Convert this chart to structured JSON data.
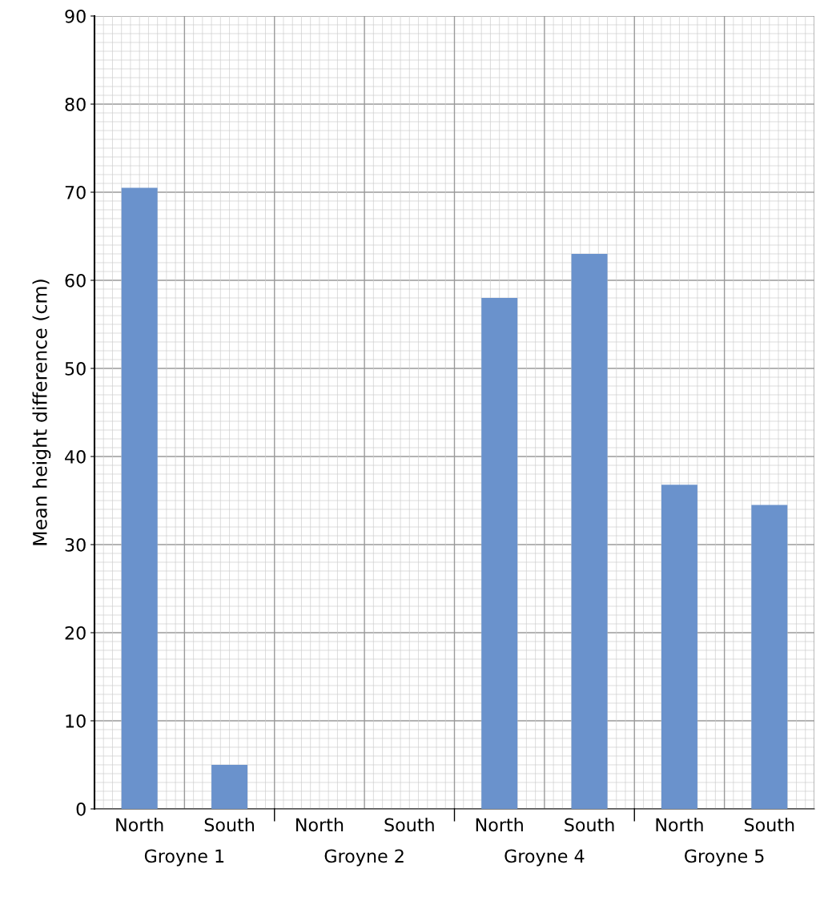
{
  "chart_data": {
    "type": "bar",
    "ylabel": "Mean height difference (cm)",
    "categories": [
      "North",
      "South",
      "North",
      "South",
      "North",
      "South",
      "North",
      "South"
    ],
    "values": [
      70.5,
      5,
      null,
      null,
      58,
      63,
      36.8,
      34.5
    ],
    "color": "#6a92cc",
    "ylim": [
      0,
      90
    ],
    "yticks": [
      0,
      10,
      20,
      30,
      40,
      50,
      60,
      70,
      80,
      90
    ],
    "grid": true,
    "annotations": [
      "Groyne 1",
      "Groyne 2",
      "Groyne 4",
      "Groyne 5"
    ]
  }
}
